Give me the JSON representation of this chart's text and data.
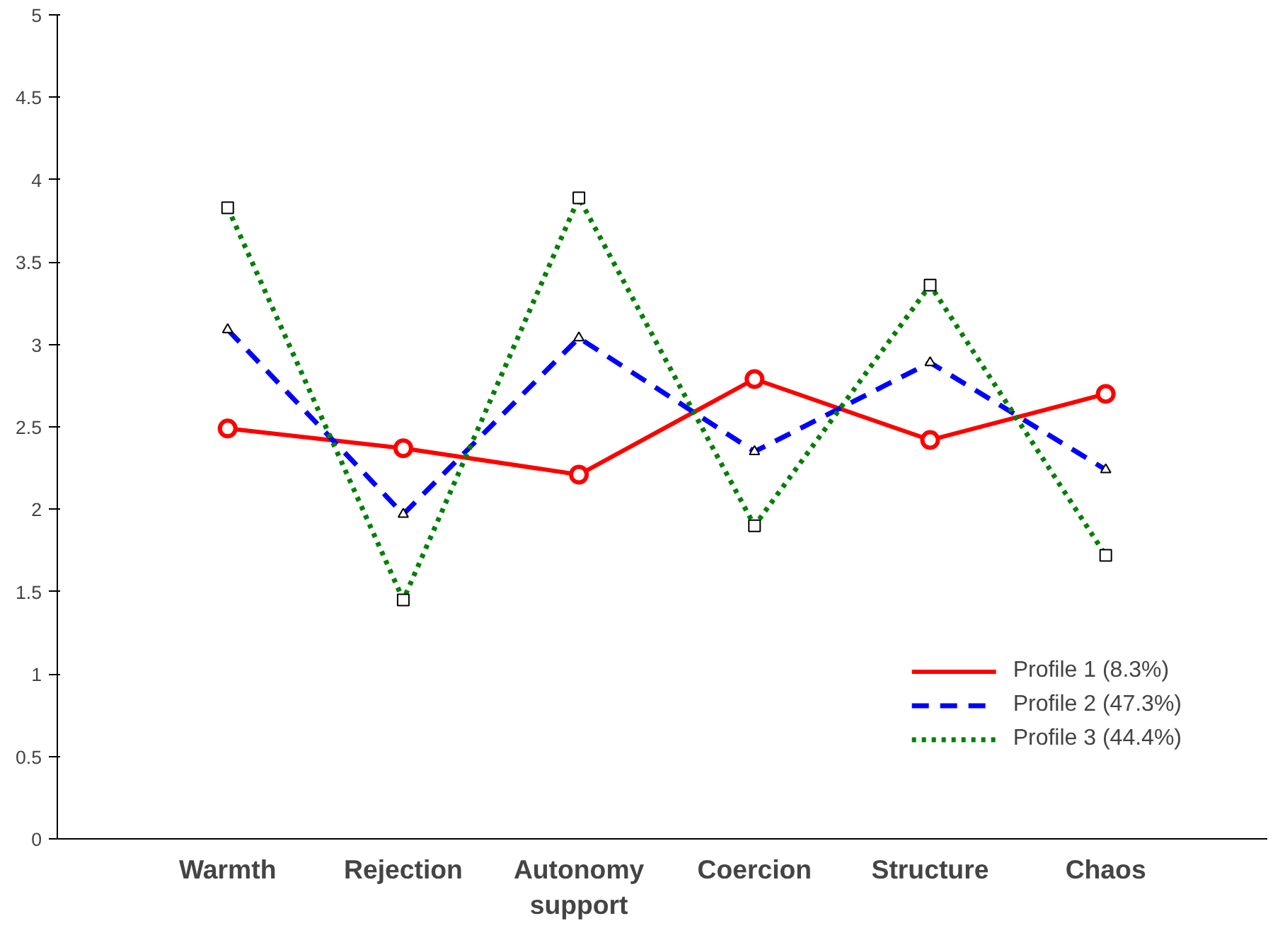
{
  "chart_data": {
    "type": "line",
    "categories": [
      "Warmth",
      "Rejection",
      "Autonomy\nsupport",
      "Coercion",
      "Structure",
      "Chaos"
    ],
    "series": [
      {
        "name": "Profile 1 (8.3%)",
        "color": "#ff0000",
        "marker": "circle",
        "line_style": "solid",
        "values": [
          2.49,
          2.37,
          2.21,
          2.79,
          2.42,
          2.7
        ]
      },
      {
        "name": "Profile 2 (47.3%)",
        "color": "#0000ff",
        "marker": "triangle",
        "line_style": "dashed",
        "values": [
          3.09,
          1.97,
          3.04,
          2.35,
          2.89,
          2.24
        ]
      },
      {
        "name": "Profile 3 (44.4%)",
        "color": "#008000",
        "marker": "square",
        "line_style": "dotted",
        "values": [
          3.83,
          1.45,
          3.89,
          1.9,
          3.36,
          1.72
        ]
      }
    ],
    "ylim": [
      0,
      5
    ],
    "yticks": [
      0,
      0.5,
      1,
      1.5,
      2,
      2.5,
      3,
      3.5,
      4,
      4.5,
      5
    ],
    "grid": false,
    "legend": "bottom right"
  }
}
